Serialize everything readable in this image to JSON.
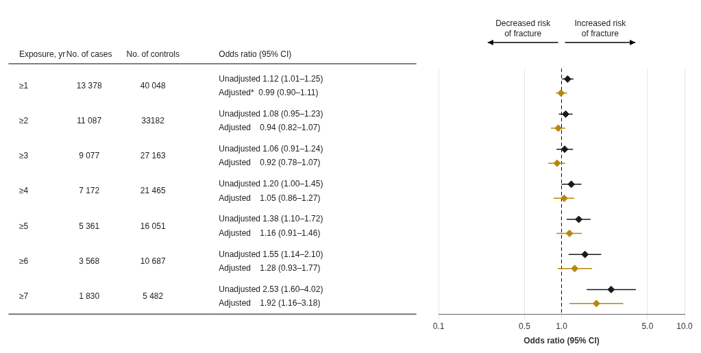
{
  "chart_data": {
    "type": "forest",
    "xlabel": "Odds ratio (95% CI)",
    "log": "x",
    "xlim": [
      0.1,
      10
    ],
    "xticks": [
      0.1,
      0.5,
      {
        "value": 1,
        "label": "1.0"
      },
      {
        "value": 5,
        "label": "5.0"
      },
      {
        "value": 10,
        "label": "10.0"
      }
    ],
    "grid": true,
    "reference_line": 1,
    "headers": [
      "Exposure, yr",
      "No. of cases",
      "No. of controls",
      "Odds ratio (95% CI)"
    ],
    "categories": [
      "≥1",
      "≥2",
      "≥3",
      "≥4",
      "≥5",
      "≥6",
      "≥7"
    ],
    "n_cases": [
      "13 378",
      "11 087",
      "9 077",
      "7 172",
      "5 361",
      "3 568",
      "1 830"
    ],
    "n_controls": [
      "40 048",
      "33182",
      "27 163",
      "21 465",
      "16 051",
      "10 687",
      "5 482"
    ],
    "series": [
      {
        "name": "Unadjusted",
        "color": "#1a1a1a",
        "marker": "diamond",
        "values": [
          1.12,
          1.08,
          1.06,
          1.2,
          1.38,
          1.55,
          2.53
        ],
        "lo": [
          1.01,
          0.95,
          0.91,
          1.0,
          1.1,
          1.14,
          1.6
        ],
        "hi": [
          1.25,
          1.23,
          1.24,
          1.45,
          1.72,
          2.1,
          4.02
        ],
        "value_labels": [
          "Unadjusted 1.12 (1.01–1.25)",
          "Unadjusted 1.08 (0.95–1.23)",
          "Unadjusted 1.06 (0.91–1.24)",
          "Unadjusted 1.20 (1.00–1.45)",
          "Unadjusted 1.38 (1.10–1.72)",
          "Unadjusted 1.55 (1.14–2.10)",
          "Unadjusted 2.53 (1.60–4.02)"
        ]
      },
      {
        "name": "Adjusted",
        "color": "#b8860b",
        "marker": "diamond",
        "values": [
          0.99,
          0.94,
          0.92,
          1.05,
          1.16,
          1.28,
          1.92
        ],
        "lo": [
          0.9,
          0.82,
          0.78,
          0.86,
          0.91,
          0.93,
          1.16
        ],
        "hi": [
          1.11,
          1.07,
          1.07,
          1.27,
          1.46,
          1.77,
          3.18
        ],
        "value_labels": [
          "Adjusted*  0.99 (0.90–1.11)",
          "Adjusted    0.94 (0.82–1.07)",
          "Adjusted    0.92 (0.78–1.07)",
          "Adjusted    1.05 (0.86–1.27)",
          "Adjusted    1.16 (0.91–1.46)",
          "Adjusted    1.28 (0.93–1.77)",
          "Adjusted    1.92 (1.16–3.18)"
        ]
      }
    ],
    "annotations": [
      "Decreased risk\nof fracture",
      "Increased risk\nof fracture"
    ]
  }
}
